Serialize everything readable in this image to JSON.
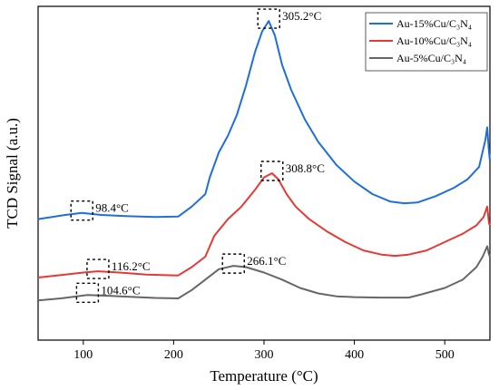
{
  "chart_data": {
    "type": "line",
    "xlabel": "Temperature (°C)",
    "ylabel": "TCD Signal (a.u.)",
    "xlim": [
      50,
      550
    ],
    "x_ticks": [
      100,
      200,
      300,
      400,
      500
    ],
    "y_ticks_shown": false,
    "grid": false,
    "legend_position": "top-right",
    "y_units": "arbitrary",
    "series": [
      {
        "name": "Au-15%Cu/C₃N₄",
        "color": "#1f6fd9",
        "points": [
          [
            50,
            2.9
          ],
          [
            80,
            3.0
          ],
          [
            98.4,
            3.05
          ],
          [
            120,
            3.0
          ],
          [
            150,
            2.97
          ],
          [
            180,
            2.95
          ],
          [
            205,
            2.96
          ],
          [
            220,
            3.2
          ],
          [
            235,
            3.5
          ],
          [
            240,
            3.9
          ],
          [
            250,
            4.5
          ],
          [
            260,
            4.9
          ],
          [
            270,
            5.4
          ],
          [
            280,
            6.1
          ],
          [
            290,
            6.9
          ],
          [
            298,
            7.4
          ],
          [
            305.2,
            7.65
          ],
          [
            312,
            7.3
          ],
          [
            320,
            6.6
          ],
          [
            330,
            6.0
          ],
          [
            345,
            5.3
          ],
          [
            360,
            4.75
          ],
          [
            380,
            4.2
          ],
          [
            400,
            3.8
          ],
          [
            420,
            3.5
          ],
          [
            440,
            3.32
          ],
          [
            455,
            3.28
          ],
          [
            470,
            3.3
          ],
          [
            490,
            3.45
          ],
          [
            510,
            3.65
          ],
          [
            525,
            3.85
          ],
          [
            538,
            4.15
          ],
          [
            545,
            4.8
          ],
          [
            547,
            5.1
          ],
          [
            549,
            4.5
          ],
          [
            550,
            4.3
          ]
        ]
      },
      {
        "name": "Au-10%Cu/C₃N₄",
        "color": "#e53935",
        "points": [
          [
            50,
            1.5
          ],
          [
            80,
            1.57
          ],
          [
            100,
            1.62
          ],
          [
            116.2,
            1.65
          ],
          [
            140,
            1.62
          ],
          [
            170,
            1.57
          ],
          [
            205,
            1.55
          ],
          [
            220,
            1.75
          ],
          [
            235,
            2.0
          ],
          [
            245,
            2.5
          ],
          [
            260,
            2.9
          ],
          [
            275,
            3.2
          ],
          [
            290,
            3.6
          ],
          [
            300,
            3.9
          ],
          [
            308.8,
            4.0
          ],
          [
            316,
            3.85
          ],
          [
            325,
            3.5
          ],
          [
            335,
            3.2
          ],
          [
            350,
            2.9
          ],
          [
            370,
            2.6
          ],
          [
            390,
            2.35
          ],
          [
            410,
            2.15
          ],
          [
            430,
            2.05
          ],
          [
            445,
            2.02
          ],
          [
            460,
            2.05
          ],
          [
            480,
            2.15
          ],
          [
            500,
            2.35
          ],
          [
            520,
            2.55
          ],
          [
            535,
            2.75
          ],
          [
            543,
            2.95
          ],
          [
            547,
            3.2
          ],
          [
            549,
            2.8
          ],
          [
            550,
            2.75
          ]
        ]
      },
      {
        "name": "Au-5%Cu/C₃N₄",
        "color": "#666666",
        "points": [
          [
            50,
            0.95
          ],
          [
            75,
            1.0
          ],
          [
            104.6,
            1.08
          ],
          [
            130,
            1.06
          ],
          [
            160,
            1.03
          ],
          [
            180,
            1.01
          ],
          [
            205,
            1.0
          ],
          [
            220,
            1.2
          ],
          [
            235,
            1.45
          ],
          [
            250,
            1.7
          ],
          [
            266.1,
            1.78
          ],
          [
            280,
            1.75
          ],
          [
            300,
            1.62
          ],
          [
            320,
            1.45
          ],
          [
            340,
            1.25
          ],
          [
            360,
            1.12
          ],
          [
            380,
            1.05
          ],
          [
            400,
            1.03
          ],
          [
            430,
            1.02
          ],
          [
            460,
            1.02
          ],
          [
            475,
            1.1
          ],
          [
            500,
            1.25
          ],
          [
            520,
            1.45
          ],
          [
            535,
            1.75
          ],
          [
            542,
            2.0
          ],
          [
            547,
            2.25
          ],
          [
            549,
            2.05
          ],
          [
            550,
            2.0
          ]
        ]
      }
    ],
    "annotations": [
      {
        "text": "305.2°C",
        "x": 305.2,
        "y": 7.65,
        "series": 0
      },
      {
        "text": "98.4°C",
        "x": 98.4,
        "y": 3.05,
        "series": 0
      },
      {
        "text": "308.8°C",
        "x": 308.8,
        "y": 4.0,
        "series": 1
      },
      {
        "text": "116.2°C",
        "x": 116.2,
        "y": 1.65,
        "series": 1
      },
      {
        "text": "266.1°C",
        "x": 266.1,
        "y": 1.78,
        "series": 2
      },
      {
        "text": "104.6°C",
        "x": 104.6,
        "y": 1.08,
        "series": 2
      }
    ]
  }
}
